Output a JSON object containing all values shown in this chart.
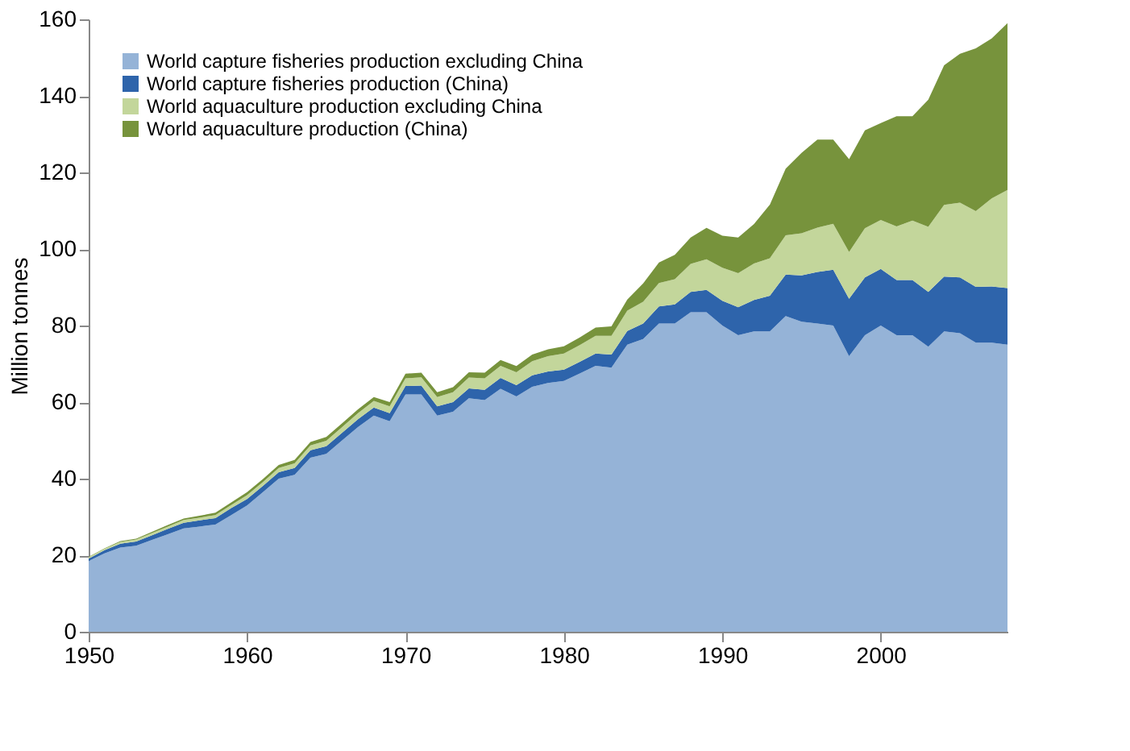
{
  "chart_data": {
    "type": "area",
    "stacked": true,
    "ylabel": "Million tonnes",
    "x": [
      1950,
      1951,
      1952,
      1953,
      1954,
      1955,
      1956,
      1957,
      1958,
      1959,
      1960,
      1961,
      1962,
      1963,
      1964,
      1965,
      1966,
      1967,
      1968,
      1969,
      1970,
      1971,
      1972,
      1973,
      1974,
      1975,
      1976,
      1977,
      1978,
      1979,
      1980,
      1981,
      1982,
      1983,
      1984,
      1985,
      1986,
      1987,
      1988,
      1989,
      1990,
      1991,
      1992,
      1993,
      1994,
      1995,
      1996,
      1997,
      1998,
      1999,
      2000,
      2001,
      2002,
      2003,
      2004,
      2005,
      2006,
      2007,
      2008
    ],
    "series": [
      {
        "name": "World capture fisheries production excluding China",
        "color": "#95b3d7",
        "values": [
          18.5,
          20.5,
          22,
          22.5,
          24,
          25.5,
          27,
          27.5,
          28,
          30.5,
          33,
          36.5,
          40,
          41,
          45.5,
          46.5,
          50,
          53.5,
          56.5,
          55,
          62,
          62,
          56.5,
          57.5,
          61,
          60.5,
          63.5,
          61.5,
          64,
          65,
          65.5,
          67.5,
          69.5,
          69,
          75,
          76.5,
          80.5,
          80.5,
          83.5,
          83.5,
          80,
          77.5,
          78.5,
          78.5,
          82.5,
          81,
          80.5,
          80,
          72,
          77.5,
          80,
          77.5,
          77.5,
          74.5,
          78.5,
          78,
          75.5,
          75.5,
          75
        ]
      },
      {
        "name": "World capture fisheries production (China)",
        "color": "#2e64ab",
        "values": [
          0.6,
          0.8,
          1.0,
          1.1,
          1.2,
          1.4,
          1.5,
          1.6,
          1.7,
          1.8,
          1.7,
          1.6,
          1.7,
          1.8,
          1.9,
          2.0,
          2.0,
          2.0,
          2.1,
          2.1,
          2.2,
          2.3,
          2.4,
          2.5,
          2.6,
          2.7,
          2.8,
          2.9,
          3.0,
          3.0,
          3.0,
          3.0,
          3.2,
          3.4,
          3.6,
          4.0,
          4.5,
          5.0,
          5.3,
          5.8,
          6.5,
          7.3,
          8.2,
          9.3,
          10.8,
          12.1,
          13.5,
          14.6,
          15.0,
          15.1,
          14.8,
          14.4,
          14.4,
          14.3,
          14.3,
          14.6,
          14.6,
          14.7,
          14.8
        ]
      },
      {
        "name": "World aquaculture production excluding China",
        "color": "#c3d69b",
        "values": [
          0.4,
          0.4,
          0.5,
          0.5,
          0.6,
          0.6,
          0.7,
          0.7,
          0.8,
          0.8,
          1.0,
          1.0,
          1.1,
          1.2,
          1.3,
          1.4,
          1.5,
          1.6,
          1.7,
          1.8,
          2.0,
          2.2,
          2.4,
          2.6,
          2.8,
          3.0,
          3.2,
          3.4,
          3.7,
          4.0,
          4.2,
          4.4,
          4.6,
          4.9,
          5.3,
          5.7,
          6.1,
          6.6,
          7.3,
          8.0,
          8.6,
          8.9,
          9.5,
          9.8,
          10.3,
          11.0,
          11.6,
          12.0,
          12.2,
          12.8,
          12.8,
          14.0,
          15.5,
          17.0,
          18.7,
          19.5,
          19.8,
          23.0,
          25.6
        ]
      },
      {
        "name": "World aquaculture production (China)",
        "color": "#77933c",
        "values": [
          0.1,
          0.1,
          0.2,
          0.2,
          0.3,
          0.4,
          0.4,
          0.5,
          0.6,
          0.7,
          0.8,
          0.8,
          0.8,
          0.9,
          0.9,
          1.0,
          1.0,
          1.0,
          1.0,
          1.1,
          1.2,
          1.2,
          1.3,
          1.3,
          1.4,
          1.5,
          1.5,
          1.6,
          1.7,
          1.8,
          1.9,
          2.0,
          2.2,
          2.5,
          2.9,
          4.8,
          5.4,
          6.4,
          6.9,
          8.2,
          8.4,
          9.3,
          10.3,
          14.0,
          17.4,
          21.0,
          23.0,
          22.0,
          24.3,
          25.6,
          25.3,
          28.8,
          27.3,
          33.2,
          36.5,
          38.9,
          42.5,
          41.8,
          43.6
        ]
      }
    ],
    "xlim": [
      1950,
      2008
    ],
    "xticks": [
      1950,
      1960,
      1970,
      1980,
      1990,
      2000
    ],
    "ylim": [
      0,
      160
    ],
    "yticks": [
      0,
      20,
      40,
      60,
      80,
      100,
      120,
      140,
      160
    ],
    "grid": false,
    "legend": "top left"
  }
}
